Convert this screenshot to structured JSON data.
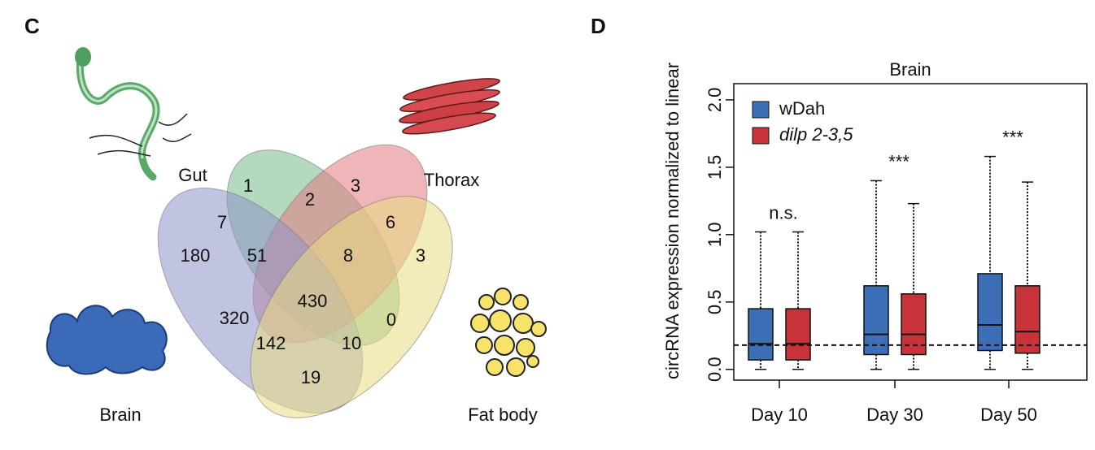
{
  "chart_data": [
    {
      "type": "venn",
      "panel_label": "C",
      "sets": [
        "Gut",
        "Thorax",
        "Brain",
        "Fat body"
      ],
      "colors": [
        "#79b98a",
        "#e27a82",
        "#8e93c8",
        "#e9dc82"
      ],
      "values": [
        1,
        3,
        2,
        7,
        6,
        180,
        51,
        8,
        3,
        430,
        320,
        0,
        142,
        10,
        19
      ]
    },
    {
      "type": "box",
      "panel_label": "D",
      "title": "Brain",
      "ylabel": "circRNA expression normalized to linear",
      "categories": [
        "Day 10",
        "Day 30",
        "Day 50"
      ],
      "ylim": [
        -0.08,
        2.12
      ],
      "yticks": [
        {
          "value": 0,
          "label": "0.0"
        },
        0.5,
        {
          "value": 1,
          "label": "1.0"
        },
        1.5,
        {
          "value": 2,
          "label": "2.0"
        }
      ],
      "hline": 0.18,
      "annotations": [
        "n.s.",
        "***",
        "***"
      ],
      "series": [
        {
          "name": "wDah",
          "color": "#3d6fb6",
          "font_style": "normal",
          "min": [
            0,
            0,
            0
          ],
          "q1": [
            0.07,
            0.11,
            0.14
          ],
          "median": [
            0.19,
            0.26,
            0.33
          ],
          "q3": [
            0.45,
            0.62,
            0.71
          ],
          "max": [
            1.02,
            1.4,
            1.58
          ]
        },
        {
          "name": "dilp 2-3,5",
          "color": "#c8333a",
          "font_style": "italic",
          "min": [
            0,
            0,
            0
          ],
          "q1": [
            0.07,
            0.11,
            0.12
          ],
          "median": [
            0.19,
            0.26,
            0.28
          ],
          "q3": [
            0.45,
            0.56,
            0.62
          ],
          "max": [
            1.02,
            1.23,
            1.39
          ]
        }
      ]
    }
  ]
}
